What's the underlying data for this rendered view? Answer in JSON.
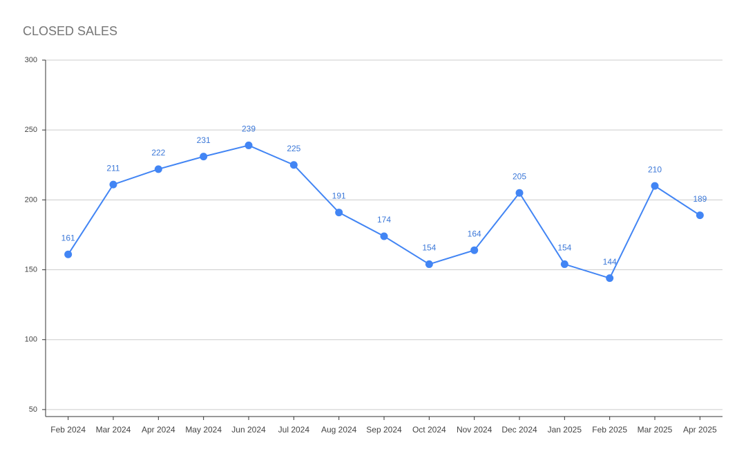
{
  "chart_data": {
    "type": "line",
    "title": "CLOSED SALES",
    "categories": [
      "Feb 2024",
      "Mar 2024",
      "Apr 2024",
      "May 2024",
      "Jun 2024",
      "Jul 2024",
      "Aug 2024",
      "Sep 2024",
      "Oct 2024",
      "Nov 2024",
      "Dec 2024",
      "Jan 2025",
      "Feb 2025",
      "Mar 2025",
      "Apr 2025"
    ],
    "series": [
      {
        "name": "Closed Sales",
        "color": "#4285f4",
        "values": [
          161,
          211,
          222,
          231,
          239,
          225,
          191,
          174,
          154,
          164,
          205,
          154,
          144,
          210,
          189
        ]
      }
    ],
    "ylim": [
      45,
      300
    ],
    "yticks": [
      50,
      100,
      150,
      200,
      250,
      300
    ],
    "grid": true
  }
}
